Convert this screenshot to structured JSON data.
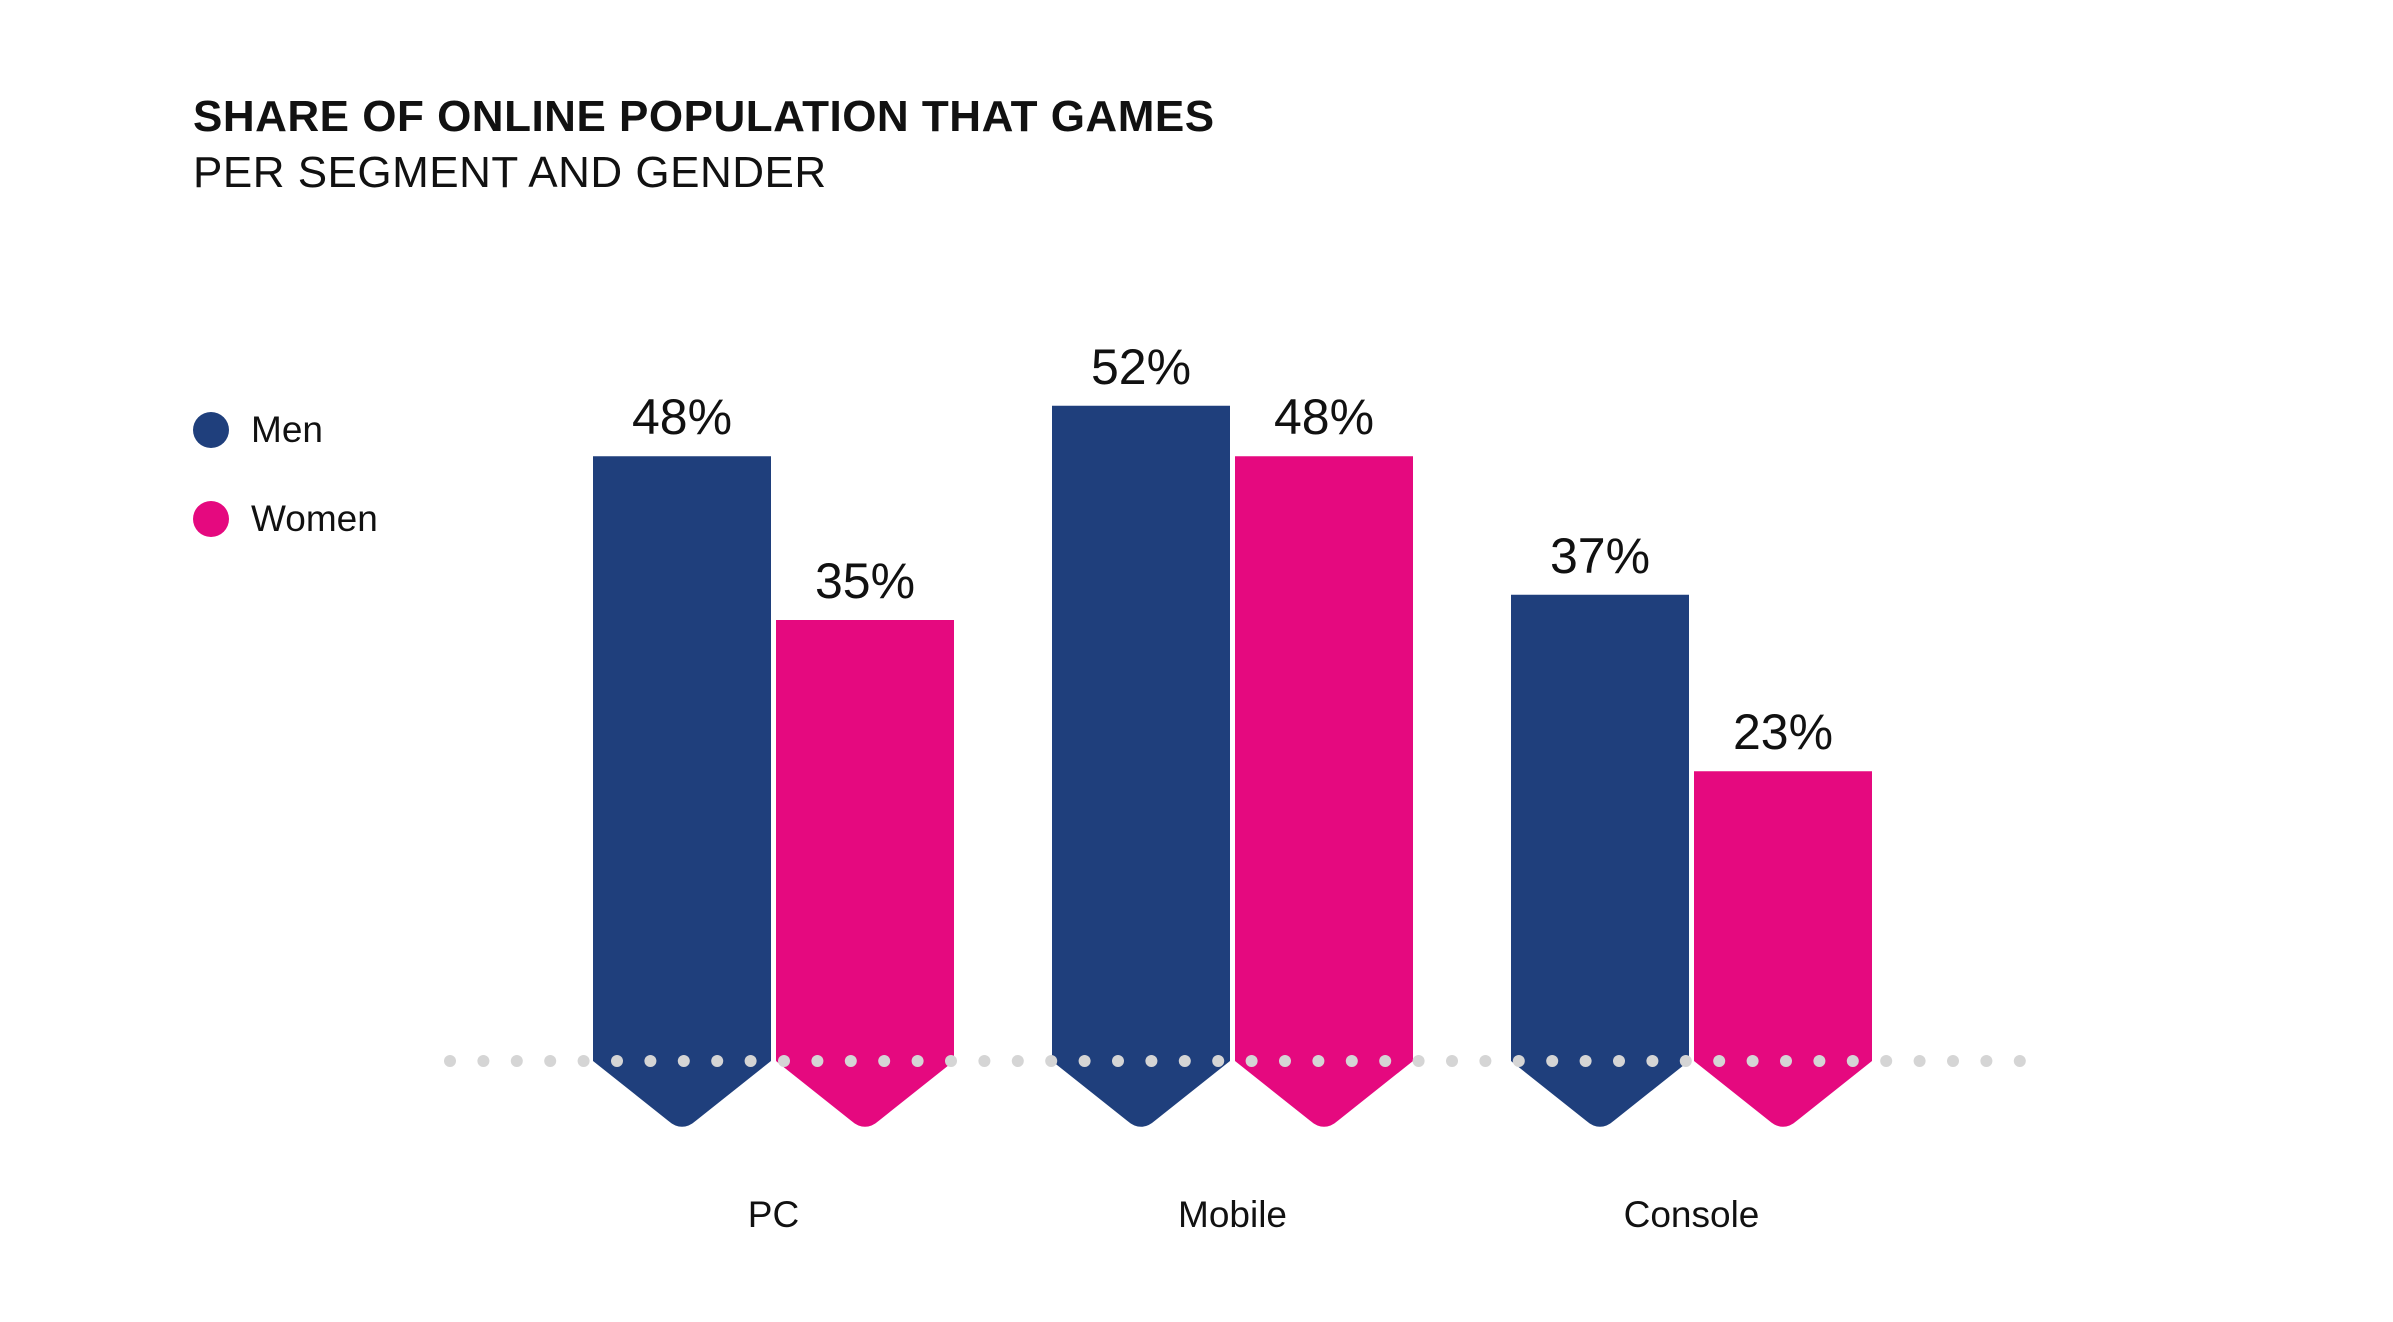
{
  "title": "SHARE OF ONLINE POPULATION THAT GAMES",
  "subtitle": "PER SEGMENT AND GENDER",
  "legend": [
    {
      "label": "Men",
      "color": "#1f3f7c"
    },
    {
      "label": "Women",
      "color": "#e5097f"
    }
  ],
  "chart_data": {
    "type": "bar",
    "title": "SHARE OF ONLINE POPULATION THAT GAMES",
    "subtitle": "PER SEGMENT AND GENDER",
    "categories": [
      "PC",
      "Mobile",
      "Console"
    ],
    "series": [
      {
        "name": "Men",
        "color": "#1f3f7c",
        "values": [
          48,
          52,
          37
        ],
        "labels": [
          "48%",
          "52%",
          "37%"
        ]
      },
      {
        "name": "Women",
        "color": "#e5097f",
        "values": [
          35,
          48,
          23
        ],
        "labels": [
          "35%",
          "48%",
          "23%"
        ]
      }
    ],
    "unit": "%",
    "ylim": [
      0,
      52
    ],
    "grid": false,
    "legend_position": "left"
  }
}
